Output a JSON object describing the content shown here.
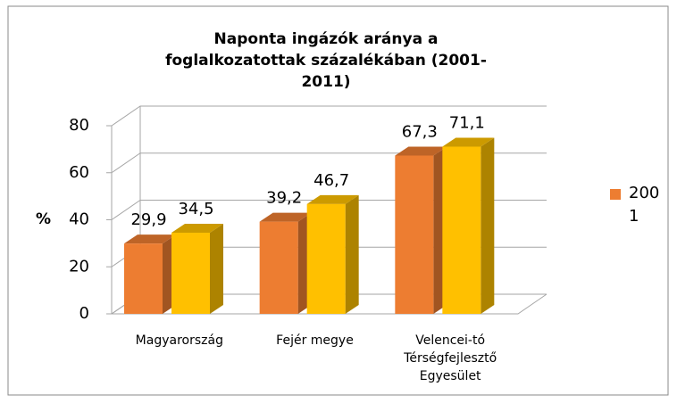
{
  "chart_data": {
    "type": "bar3d",
    "title": "Naponta ingázók aránya a foglalkozatottak százalékában (2001-2011)",
    "y_label": "%",
    "categories": [
      "Magyarország",
      "Fejér megye",
      "Velencei-tó Térségfejlesztő Egyesület"
    ],
    "series": [
      {
        "name": "2001",
        "color": "#ed7d31",
        "values": [
          29.9,
          39.2,
          67.3
        ],
        "value_labels": [
          "29,9",
          "39,2",
          "67,3"
        ]
      },
      {
        "color": "#ffc000",
        "values": [
          34.5,
          46.7,
          71.1
        ],
        "value_labels": [
          "34,5",
          "46,7",
          "71,1"
        ]
      }
    ],
    "ylim": [
      0,
      80
    ],
    "yticks": [
      0,
      20,
      40,
      60,
      80
    ],
    "grid": true
  }
}
